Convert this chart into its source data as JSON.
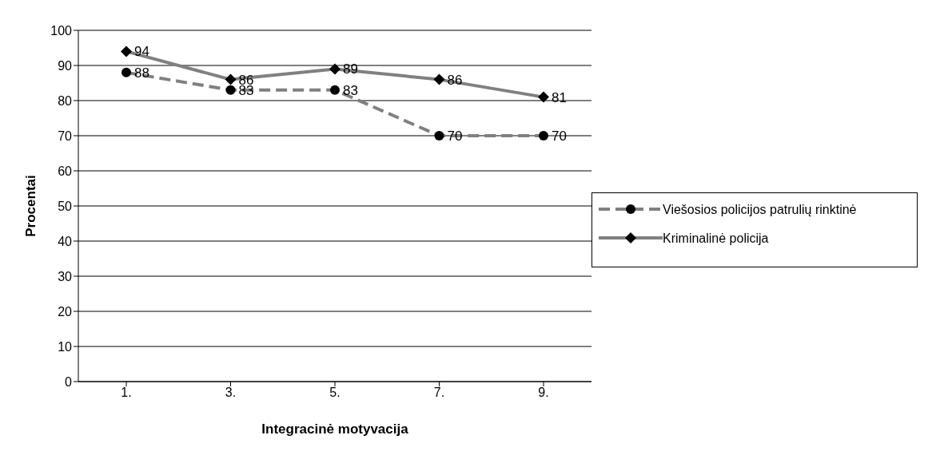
{
  "chart_data": {
    "type": "line",
    "xlabel": "Integracinė motyvacija",
    "ylabel": "Procentai",
    "categories": [
      "1.",
      "3.",
      "5.",
      "7.",
      "9."
    ],
    "series": [
      {
        "name": "Viešosios policijos patrulių rinktinė",
        "color": "#808080",
        "values": [
          88,
          83,
          83,
          70,
          70
        ],
        "marker": "circle",
        "line_style": "dashed"
      },
      {
        "name": "Kriminalinė policija",
        "color": "#808080",
        "values": [
          94,
          86,
          89,
          86,
          81
        ],
        "marker": "diamond",
        "line_style": "solid"
      }
    ],
    "ylim": [
      0,
      100
    ],
    "yticks": [
      0,
      10,
      20,
      30,
      40,
      50,
      60,
      70,
      80,
      90,
      100
    ],
    "grid": "y",
    "legend": "right",
    "data_labels": true
  }
}
